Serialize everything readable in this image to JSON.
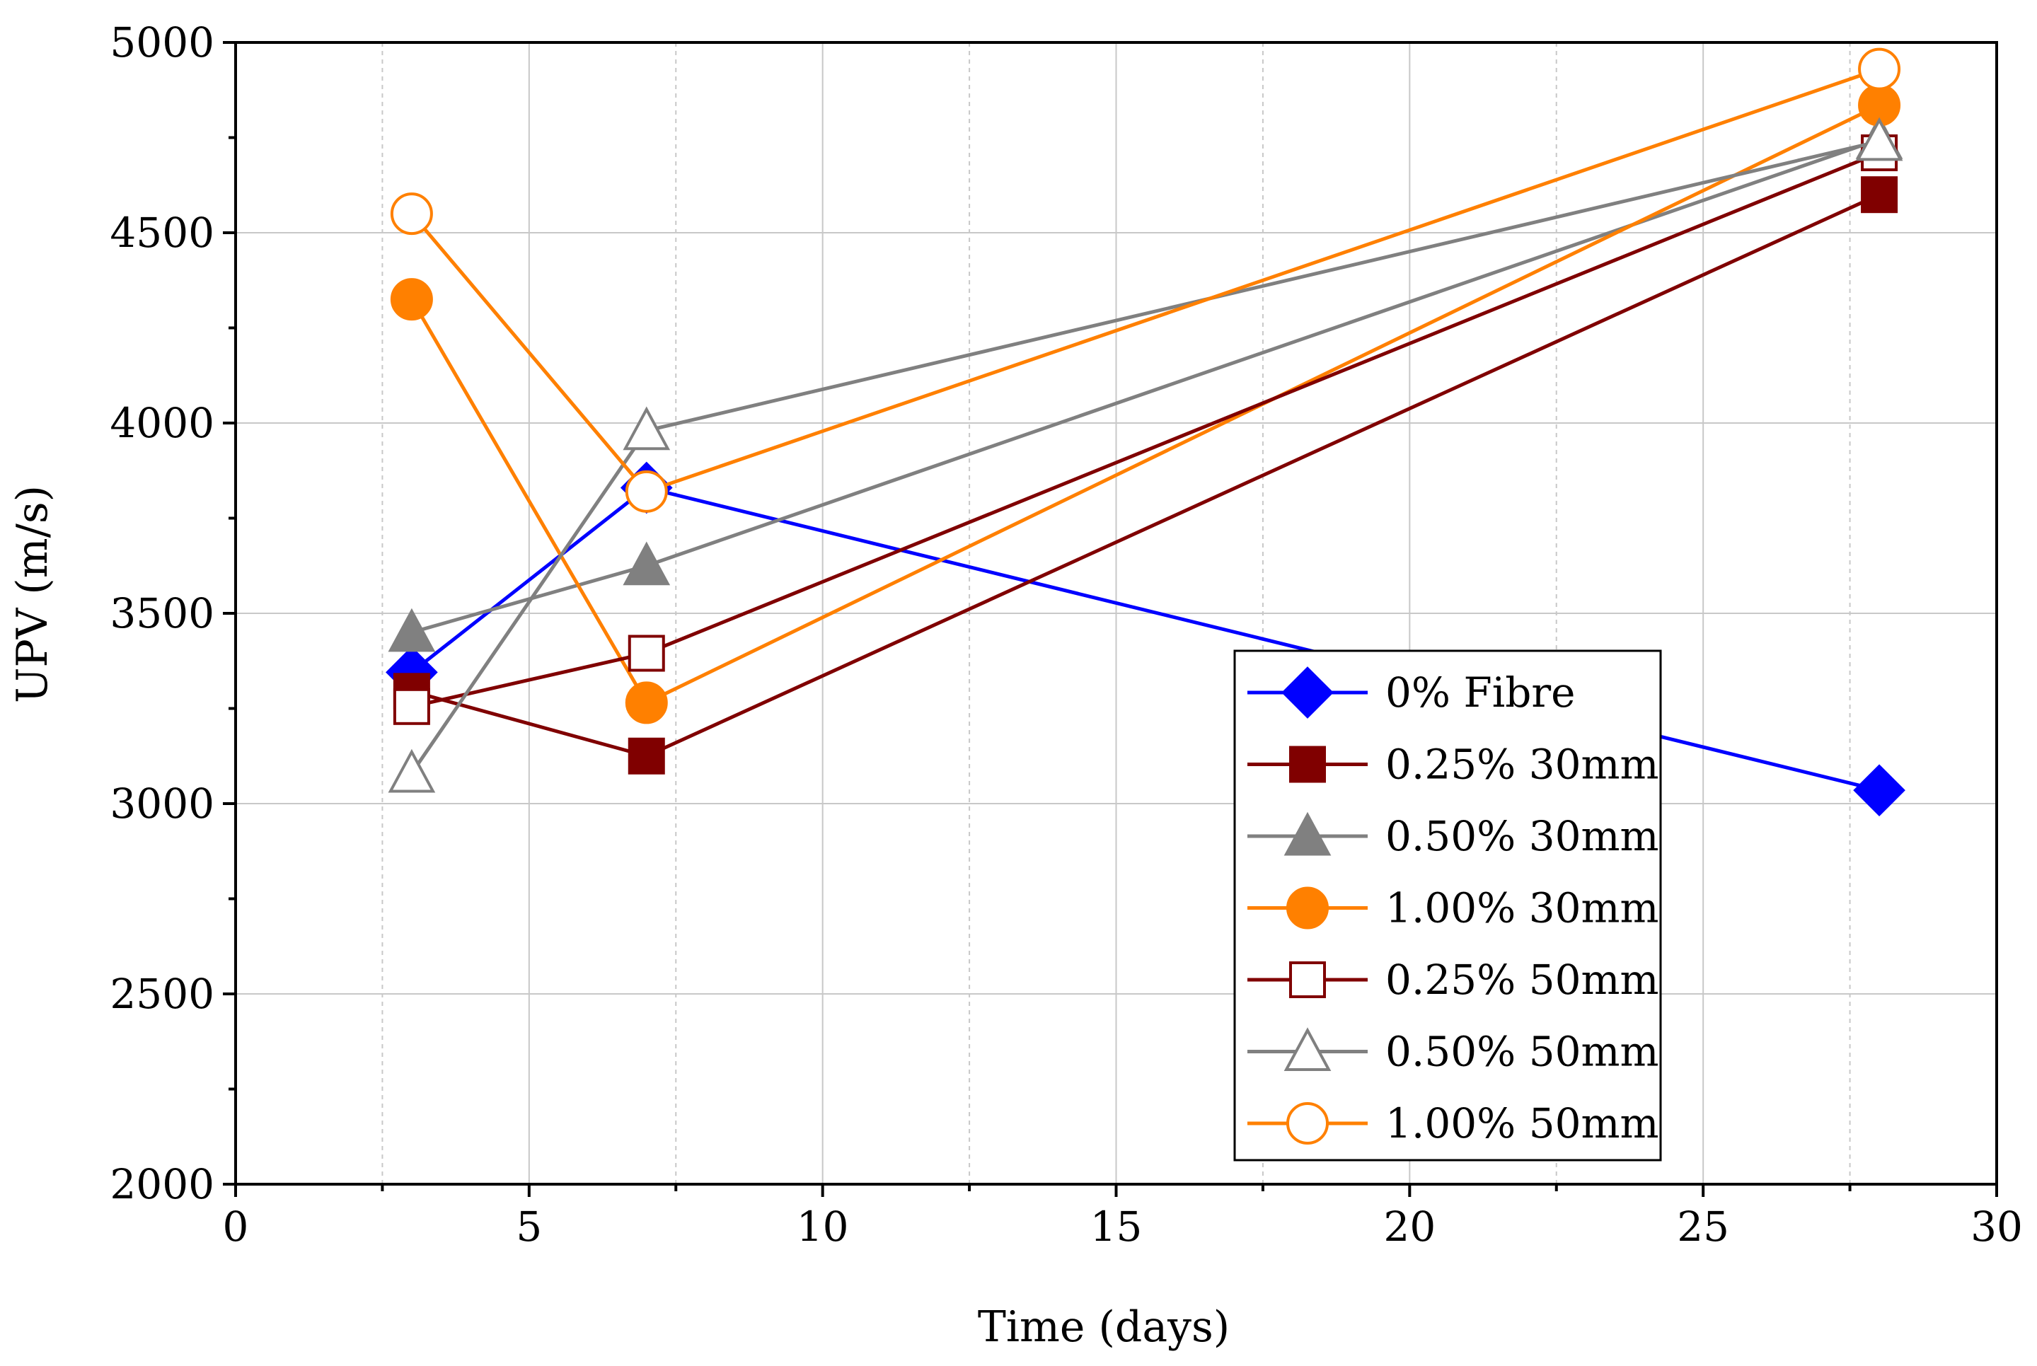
{
  "chart_data": {
    "type": "line",
    "title": "",
    "xlabel": "Time (days)",
    "ylabel": "UPV (m/s)",
    "xlim": [
      0,
      30
    ],
    "ylim": [
      2000,
      5000
    ],
    "x_ticks": [
      0,
      5,
      10,
      15,
      20,
      25,
      30
    ],
    "y_ticks": [
      2000,
      2500,
      3000,
      3500,
      4000,
      4500,
      5000
    ],
    "x_tick_labels": [
      "0",
      "5",
      "10",
      "15",
      "20",
      "25",
      "30"
    ],
    "y_tick_labels": [
      "2000",
      "2500",
      "3000",
      "3500",
      "4000",
      "4500",
      "5000"
    ],
    "grid": true,
    "legend_position": "bottom-right",
    "x": [
      3,
      7,
      28
    ],
    "series": [
      {
        "name": "0% Fibre",
        "values": [
          3345,
          3830,
          3035
        ],
        "color": "#0000ff",
        "marker": "diamond",
        "filled": true
      },
      {
        "name": "0.25% 30mm",
        "values": [
          3295,
          3125,
          4600
        ],
        "color": "#800000",
        "marker": "square",
        "filled": true
      },
      {
        "name": "0.50% 30mm",
        "values": [
          3450,
          3625,
          4745
        ],
        "color": "#808080",
        "marker": "triangle",
        "filled": true
      },
      {
        "name": "1.00% 30mm",
        "values": [
          4325,
          3265,
          4835
        ],
        "color": "#ff8000",
        "marker": "circle",
        "filled": true
      },
      {
        "name": "0.25% 50mm",
        "values": [
          3255,
          3395,
          4710
        ],
        "color": "#800000",
        "marker": "square",
        "filled": false
      },
      {
        "name": "0.50% 50mm",
        "values": [
          3080,
          3980,
          4740
        ],
        "color": "#808080",
        "marker": "triangle",
        "filled": false
      },
      {
        "name": "1.00% 50mm",
        "values": [
          4550,
          3820,
          4930
        ],
        "color": "#ff8000",
        "marker": "circle",
        "filled": false
      }
    ]
  }
}
